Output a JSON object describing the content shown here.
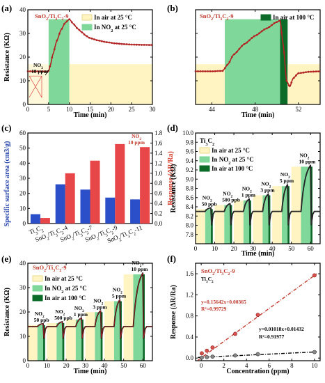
{
  "colors": {
    "air": "#fff4c2",
    "no2": "#7fd89a",
    "hot": "#0d6b2a",
    "curve": "#b22222",
    "blue": "#2a4fc8",
    "red": "#e8474a",
    "fit_red": "#c0392b",
    "fit_black": "#000000"
  },
  "chart_data": [
    {
      "panel": "(a)",
      "type": "line",
      "sample": "SnO2/Ti3C2-9",
      "legend": [
        "In air at 25 °C",
        "In NO2 at 25 °C"
      ],
      "annotation": {
        "label": "NO2",
        "label2": "10 ppm"
      },
      "xlabel": "Time (min)",
      "ylabel": "Resistance (KΩ)",
      "xlim": [
        0,
        30
      ],
      "ylim": [
        0,
        40
      ],
      "xticks": [
        "0",
        "5",
        "10",
        "15",
        "20",
        "25",
        "30"
      ],
      "yticks": [
        "0",
        "10",
        "20",
        "30",
        "40"
      ],
      "regions": [
        {
          "kind": "no2",
          "x": [
            5,
            10
          ]
        },
        {
          "kind": "air",
          "x": [
            10,
            30
          ]
        }
      ],
      "series": [
        {
          "x": [
            0,
            1,
            2,
            3,
            4,
            5,
            5.5,
            6,
            7,
            8,
            9,
            10,
            11,
            12,
            13,
            14,
            15,
            17,
            19,
            21,
            23,
            25,
            27,
            30
          ],
          "y": [
            14,
            14,
            14,
            14,
            14,
            14,
            17,
            21,
            27,
            31.5,
            34.5,
            36,
            34,
            32,
            30.5,
            29,
            28,
            27,
            26.3,
            25.8,
            25.5,
            25.3,
            25.2,
            25.1
          ]
        }
      ]
    },
    {
      "panel": "(b)",
      "type": "line",
      "sample": "SnO2/Ti3C2-9",
      "legend": [
        "In air at 100 °C"
      ],
      "xlabel": "Time (min)",
      "xlim": [
        42.5,
        54
      ],
      "ylim": [
        0,
        40
      ],
      "xticks": [
        "44",
        "48",
        "52"
      ],
      "regions": [
        {
          "kind": "air",
          "x": [
            42.5,
            45.2
          ]
        },
        {
          "kind": "no2",
          "x": [
            45.2,
            50.3
          ]
        },
        {
          "kind": "hot",
          "x": [
            50.3,
            51
          ]
        },
        {
          "kind": "air",
          "x": [
            51,
            54
          ]
        }
      ],
      "series": [
        {
          "x": [
            42.5,
            44,
            45,
            45.5,
            46,
            47,
            48,
            49,
            50,
            50.3,
            50.6,
            50.9,
            51.2,
            51.5,
            52,
            53,
            54
          ],
          "y": [
            14,
            14,
            14.2,
            17,
            21,
            25.5,
            29,
            32,
            34.8,
            35.5,
            25,
            10,
            7.5,
            11,
            13.2,
            13.8,
            14
          ]
        }
      ]
    },
    {
      "panel": "(c)",
      "type": "bar",
      "annotation": "NO2\n10 ppm",
      "categories": [
        "Ti3C2",
        "SnO2/Ti3C2-4",
        "SnO2/Ti3C2-7",
        "SnO2/Ti3C2-9",
        "SnO2/Ti3C2-11"
      ],
      "ylabel": "Specific surface area (cm3/g)",
      "y2label": "Response (ΔR/Ra)",
      "ylim": [
        0,
        60
      ],
      "y2lim": [
        0,
        1.8
      ],
      "yticks": [
        "0",
        "10",
        "20",
        "30",
        "40",
        "50",
        "60"
      ],
      "y2ticks": [
        "0.0",
        "0.2",
        "0.4",
        "0.6",
        "0.8",
        "1.0",
        "1.2",
        "1.4",
        "1.6",
        "1.8"
      ],
      "series": [
        {
          "axis": "left",
          "values": [
            6.2,
            26,
            22.5,
            17.2,
            16
          ]
        },
        {
          "axis": "right",
          "values": [
            0.11,
            1.0,
            1.25,
            1.58,
            1.52
          ]
        }
      ]
    },
    {
      "panel": "(d)",
      "type": "line",
      "sample": "Ti3C2",
      "legend": [
        "In air at 25 °C",
        "In NO2 at 25 °C",
        "In air at 100 °C"
      ],
      "xlabel": "Time (min)",
      "ylabel": "Resistance (KΩ)",
      "xlim": [
        0,
        65
      ],
      "ylim": [
        7.6,
        10.0
      ],
      "xticks": [
        "0",
        "10",
        "20",
        "30",
        "40",
        "50",
        "60"
      ],
      "yticks": [
        "7.8",
        "8.0",
        "8.2",
        "8.4",
        "8.6",
        "8.8",
        "9.0",
        "9.2",
        "9.4",
        "9.6",
        "9.8",
        "10.0"
      ],
      "pulses": [
        {
          "label": "NO2",
          "label2": "50 ppb",
          "on": 5,
          "off": 8,
          "peak": 8.38
        },
        {
          "label": "NO2",
          "label2": "500 ppb",
          "on": 15,
          "off": 18,
          "peak": 8.47
        },
        {
          "label": "NO2",
          "label2": "1 ppm",
          "on": 25,
          "off": 28,
          "peak": 8.57
        },
        {
          "label": "NO2",
          "label2": "3 ppm",
          "on": 35,
          "off": 38,
          "peak": 8.68
        },
        {
          "label": "NO2",
          "label2": "5 ppm",
          "on": 45,
          "off": 48,
          "peak": 8.88
        },
        {
          "label": "NO2",
          "label2": "10 ppm",
          "on": 55,
          "off": 60,
          "peak": 9.3
        }
      ],
      "baseline": 8.3
    },
    {
      "panel": "(e)",
      "type": "line",
      "sample": "SnO2/Ti3C2-9",
      "legend": [
        "In air at 25 °C",
        "In NO2 at 25 °C",
        "In air at 100 °C"
      ],
      "xlabel": "Time (min)",
      "ylabel": "Resistance (KΩ)",
      "xlim": [
        0,
        65
      ],
      "ylim": [
        0,
        40
      ],
      "xticks": [
        "0",
        "10",
        "20",
        "30",
        "40",
        "50",
        "60"
      ],
      "yticks": [
        "0",
        "10",
        "20",
        "30",
        "40"
      ],
      "pulses": [
        {
          "label": "NO2",
          "label2": "50 ppb",
          "on": 5,
          "off": 8,
          "peak": 15.2
        },
        {
          "label": "NO2",
          "label2": "500 ppb",
          "on": 15,
          "off": 18,
          "peak": 16.0
        },
        {
          "label": "NO2",
          "label2": "1 ppm",
          "on": 25,
          "off": 28,
          "peak": 17.5
        },
        {
          "label": "NO2",
          "label2": "3 ppm",
          "on": 35,
          "off": 38,
          "peak": 20.5
        },
        {
          "label": "NO2",
          "label2": "5 ppm",
          "on": 45,
          "off": 48,
          "peak": 25
        },
        {
          "label": "NO2",
          "label2": "10 ppm",
          "on": 55,
          "off": 60,
          "peak": 36
        }
      ],
      "baseline": 14
    },
    {
      "panel": "(f)",
      "type": "scatter",
      "xlabel": "Concentration (ppm)",
      "ylabel": "Response (ΔR/Ra)",
      "xlim": [
        -0.5,
        10.5
      ],
      "ylim": [
        -0.05,
        1.8
      ],
      "xticks": [
        "0",
        "2",
        "4",
        "6",
        "8",
        "10"
      ],
      "yticks": [
        "0.0",
        "0.4",
        "0.8",
        "1.2",
        "1.6"
      ],
      "legend": [
        "SnO2/Ti3C2-9",
        "Ti3C2"
      ],
      "series": [
        {
          "name": "SnO2/Ti3C2-9",
          "x": [
            0.05,
            0.5,
            1,
            3,
            5,
            10
          ],
          "y": [
            0.09,
            0.14,
            0.2,
            0.46,
            0.82,
            1.57
          ],
          "fit": "y=0.15642x+0.00365",
          "r2": "R²=0.99729"
        },
        {
          "name": "Ti3C2",
          "x": [
            0.05,
            0.5,
            1,
            3,
            5,
            10
          ],
          "y": [
            0.008,
            0.018,
            0.028,
            0.05,
            0.075,
            0.114
          ],
          "fit": "y=0.01018x+0.01432",
          "r2": "R²=0.91977"
        }
      ]
    }
  ]
}
